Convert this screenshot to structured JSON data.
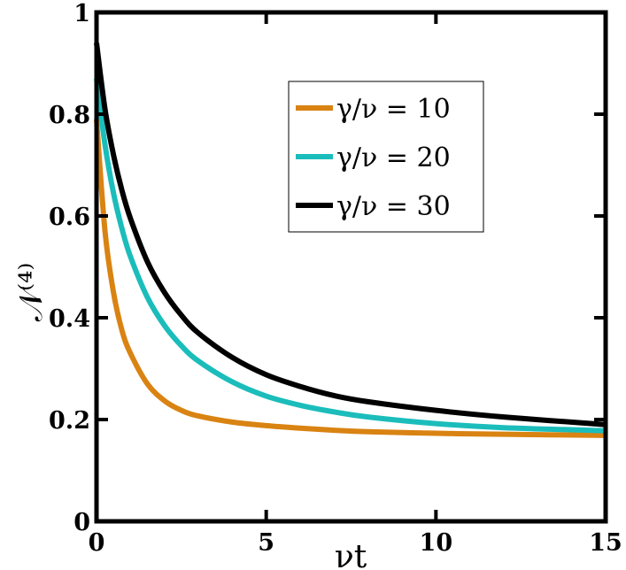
{
  "chart_data": {
    "type": "line",
    "xlabel": "νt",
    "ylabel": "𝒩⁽⁴⁾",
    "xlim": [
      0,
      15
    ],
    "ylim": [
      0,
      1
    ],
    "xticks": [
      0,
      5,
      10,
      15
    ],
    "yticks": [
      0,
      0.2,
      0.4,
      0.6,
      0.8,
      1
    ],
    "xtick_labels": [
      "0",
      "5",
      "10",
      "15"
    ],
    "ytick_labels": [
      "0",
      "0.2",
      "0.4",
      "0.6",
      "0.8",
      "1"
    ],
    "grid": false,
    "legend_position": "top-right",
    "series": [
      {
        "name": "γ/ν = 10",
        "color": "#d98312",
        "x": [
          0,
          0.25,
          0.5,
          0.75,
          1,
          1.5,
          2,
          2.5,
          3,
          4,
          5,
          6,
          7,
          8,
          10,
          12,
          15
        ],
        "y": [
          0.79,
          0.57,
          0.45,
          0.375,
          0.33,
          0.27,
          0.237,
          0.218,
          0.207,
          0.195,
          0.188,
          0.183,
          0.179,
          0.176,
          0.173,
          0.171,
          0.169
        ]
      },
      {
        "name": "γ/ν = 20",
        "color": "#1bbdbb",
        "x": [
          0,
          0.25,
          0.5,
          0.75,
          1,
          1.5,
          2,
          2.5,
          3,
          4,
          5,
          6,
          7,
          8,
          10,
          12,
          15
        ],
        "y": [
          0.87,
          0.74,
          0.645,
          0.575,
          0.52,
          0.44,
          0.385,
          0.345,
          0.315,
          0.274,
          0.246,
          0.228,
          0.215,
          0.205,
          0.192,
          0.184,
          0.178
        ]
      },
      {
        "name": "γ/ν = 30",
        "color": "#000000",
        "x": [
          0,
          0.25,
          0.5,
          0.75,
          1,
          1.5,
          2,
          2.5,
          3,
          4,
          5,
          6,
          7,
          8,
          10,
          12,
          15
        ],
        "y": [
          0.94,
          0.81,
          0.72,
          0.65,
          0.595,
          0.51,
          0.45,
          0.405,
          0.37,
          0.322,
          0.288,
          0.265,
          0.247,
          0.235,
          0.218,
          0.205,
          0.19
        ]
      }
    ]
  }
}
